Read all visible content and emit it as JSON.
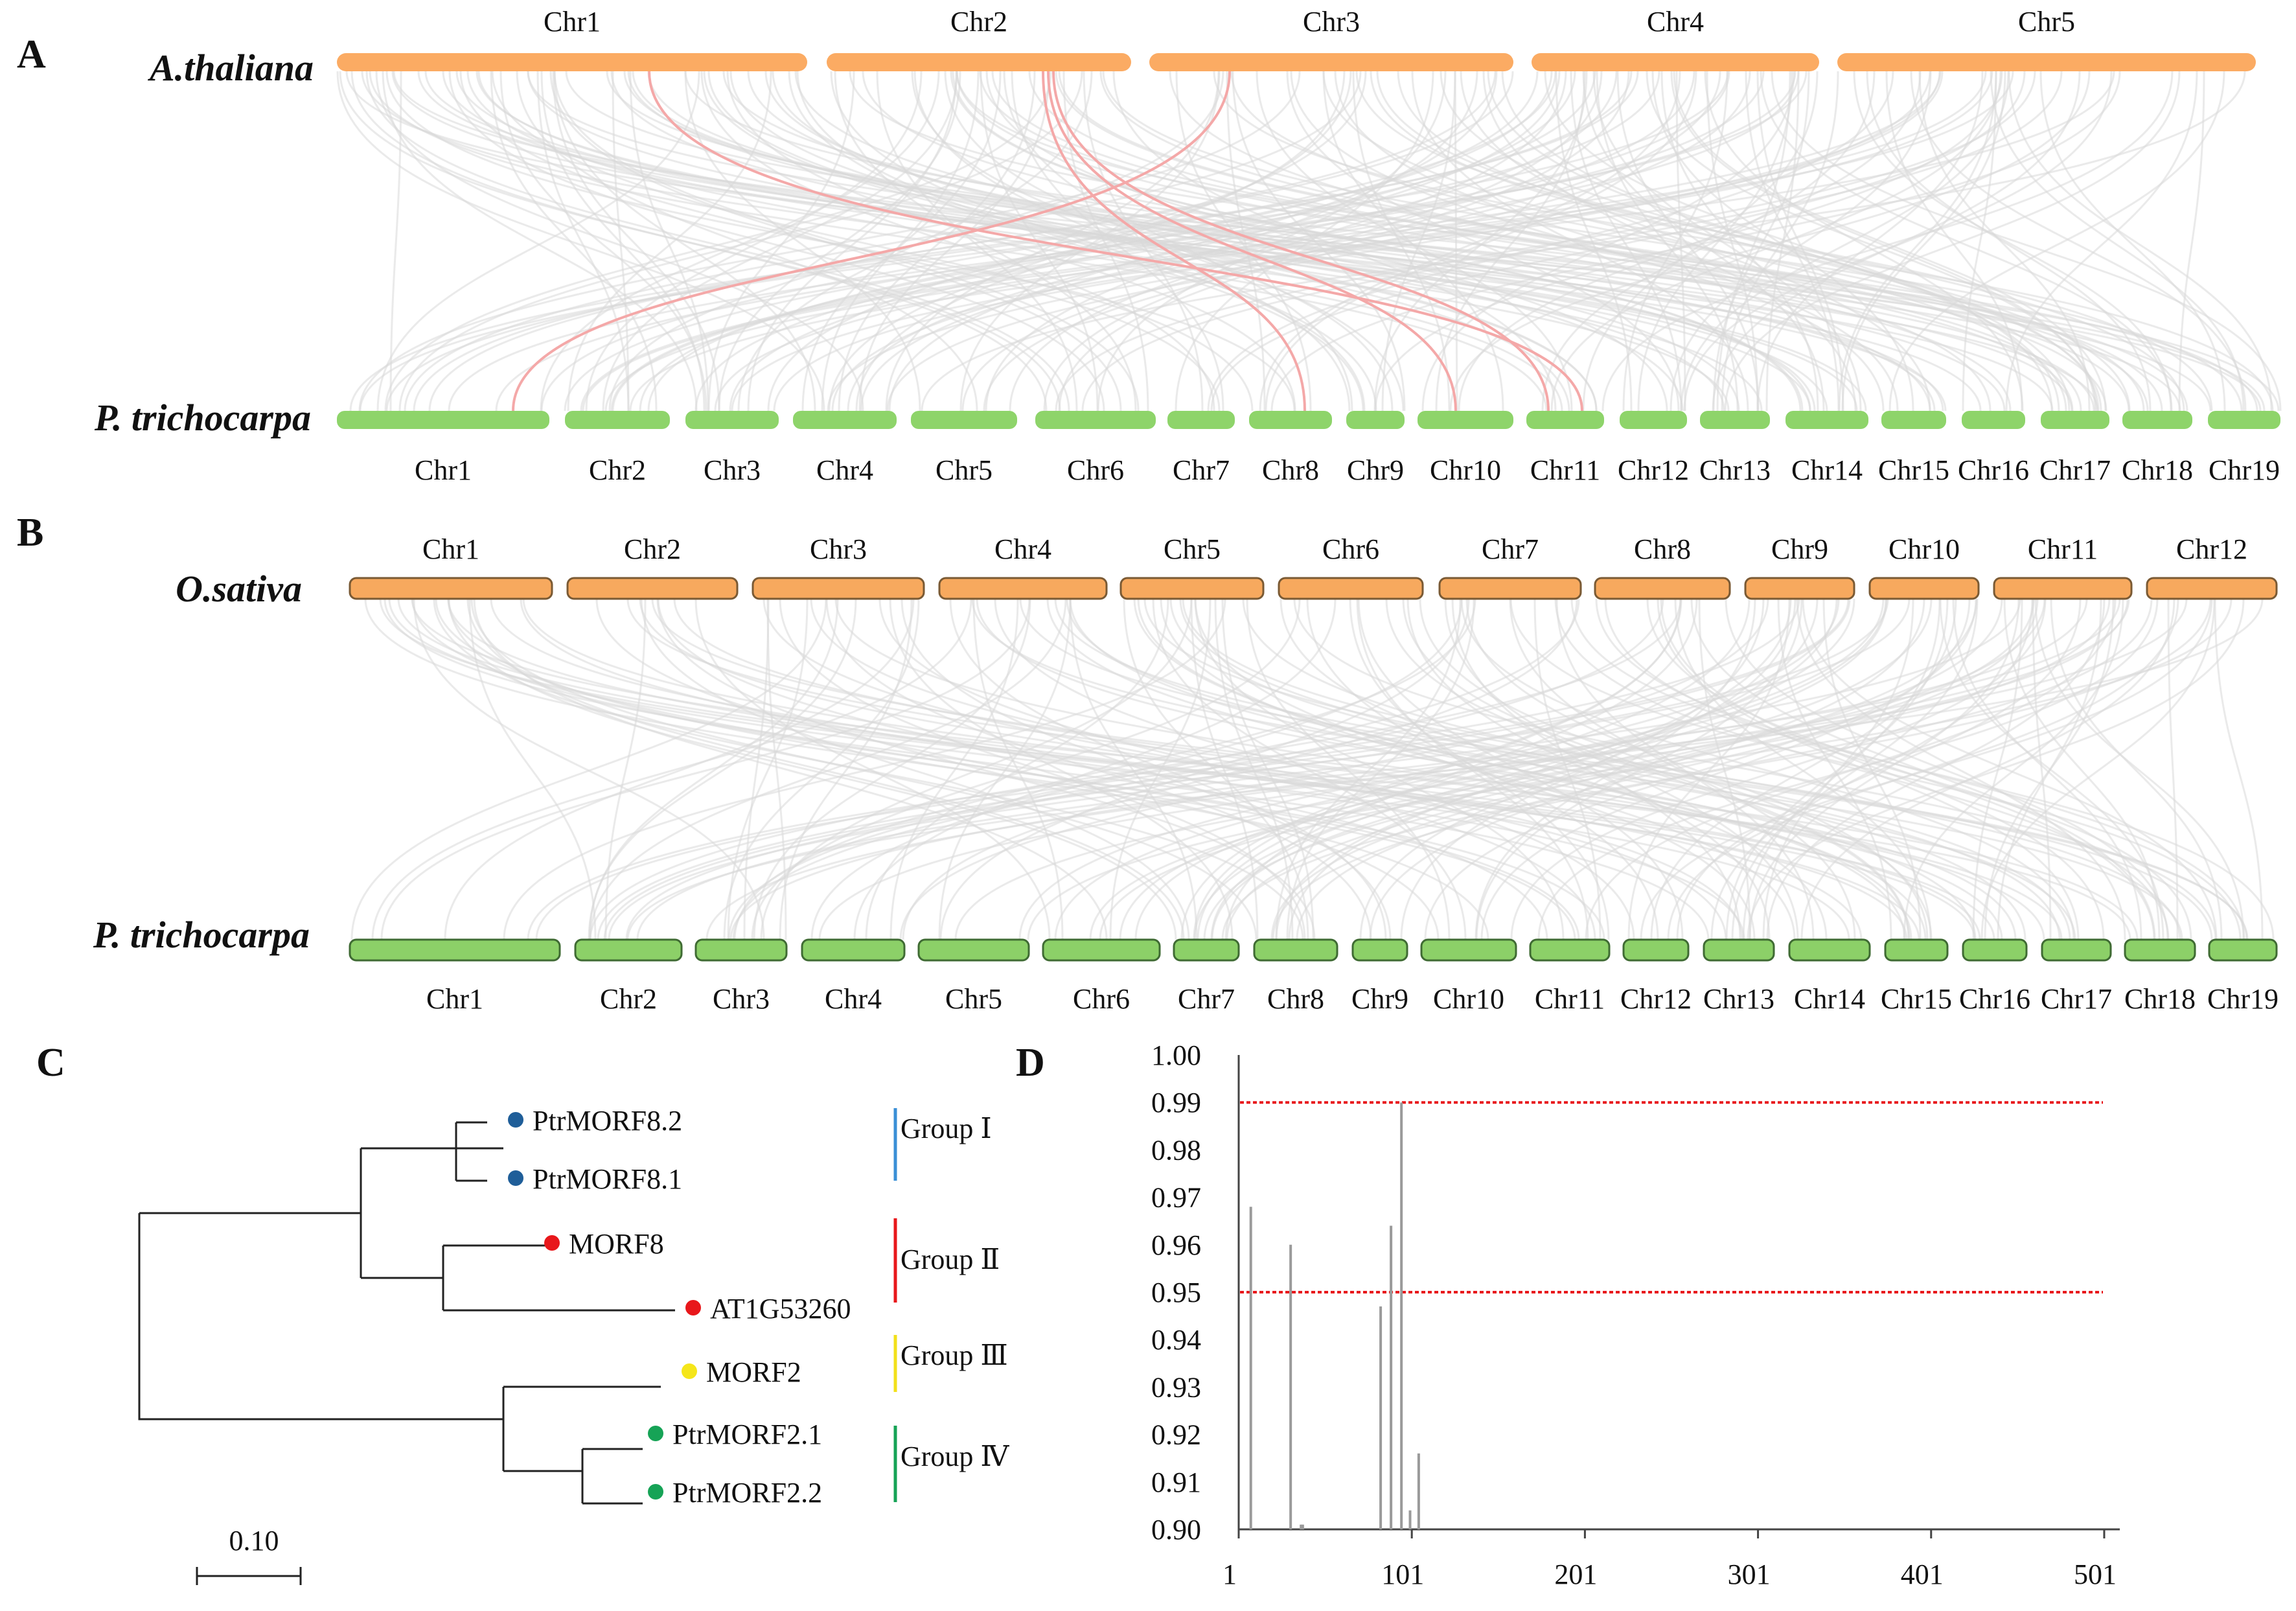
{
  "panel_a": {
    "label": "A",
    "top_species": "A.thaliana",
    "bottom_species": "P. trichocarpa",
    "top_chromosomes": [
      "Chr1",
      "Chr2",
      "Chr3",
      "Chr4",
      "Chr5"
    ],
    "bottom_chromosomes": [
      "Chr1",
      "Chr2",
      "Chr3",
      "Chr4",
      "Chr5",
      "Chr6",
      "Chr7",
      "Chr8",
      "Chr9",
      "Chr10",
      "Chr11",
      "Chr12",
      "Chr13",
      "Chr14",
      "Chr15",
      "Chr16",
      "Chr17",
      "Chr18",
      "Chr19"
    ],
    "top_color": "#fbab63",
    "bottom_color": "#8ed46a",
    "link_color": "#d8d8d8",
    "highlight_color": "#f4a8a8"
  },
  "panel_b": {
    "label": "B",
    "top_species": "O.sativa",
    "bottom_species": "P. trichocarpa",
    "top_chromosomes": [
      "Chr1",
      "Chr2",
      "Chr3",
      "Chr4",
      "Chr5",
      "Chr6",
      "Chr7",
      "Chr8",
      "Chr9",
      "Chr10",
      "Chr11",
      "Chr12"
    ],
    "bottom_chromosomes": [
      "Chr1",
      "Chr2",
      "Chr3",
      "Chr4",
      "Chr5",
      "Chr6",
      "Chr7",
      "Chr8",
      "Chr9",
      "Chr10",
      "Chr11",
      "Chr12",
      "Chr13",
      "Chr14",
      "Chr15",
      "Chr16",
      "Chr17",
      "Chr18",
      "Chr19"
    ],
    "top_color": "#f7a95e",
    "bottom_color": "#8cd068"
  },
  "panel_c": {
    "label": "C",
    "leaves": [
      {
        "name": "PtrMORF8.2",
        "color": "#1f5e99"
      },
      {
        "name": "PtrMORF8.1",
        "color": "#1f5e99"
      },
      {
        "name": "MORF8",
        "color": "#e8171b"
      },
      {
        "name": "AT1G53260",
        "color": "#e8171b"
      },
      {
        "name": "MORF2",
        "color": "#f5e61a"
      },
      {
        "name": "PtrMORF2.1",
        "color": "#16a356"
      },
      {
        "name": "PtrMORF2.2",
        "color": "#16a356"
      }
    ],
    "groups": [
      {
        "name": "Group Ⅰ",
        "color": "#3a8fd6"
      },
      {
        "name": "Group Ⅱ",
        "color": "#e8171b"
      },
      {
        "name": "Group Ⅲ",
        "color": "#f2e01a"
      },
      {
        "name": "Group Ⅳ",
        "color": "#16a356"
      }
    ],
    "scale_label": "0.10"
  },
  "panel_d": {
    "label": "D",
    "chart_data": {
      "type": "bar",
      "title": "",
      "xlabel": "",
      "ylabel": "",
      "x_ticks": [
        "1",
        "101",
        "201",
        "301",
        "401",
        "501"
      ],
      "y_ticks": [
        "0.90",
        "0.91",
        "0.92",
        "0.93",
        "0.94",
        "0.95",
        "0.96",
        "0.97",
        "0.98",
        "0.99",
        "1.00"
      ],
      "xlim": [
        1,
        510
      ],
      "ylim": [
        0.9,
        1.0
      ],
      "thresholds": [
        0.95,
        0.99
      ],
      "threshold_color": "#e8171b",
      "bar_color": "#9a9a9a",
      "x": [
        8,
        31,
        83,
        89,
        95,
        100,
        105,
        37,
        38
      ],
      "values": [
        0.968,
        0.96,
        0.947,
        0.964,
        0.99,
        0.904,
        0.916,
        0.901,
        0.901
      ]
    }
  }
}
